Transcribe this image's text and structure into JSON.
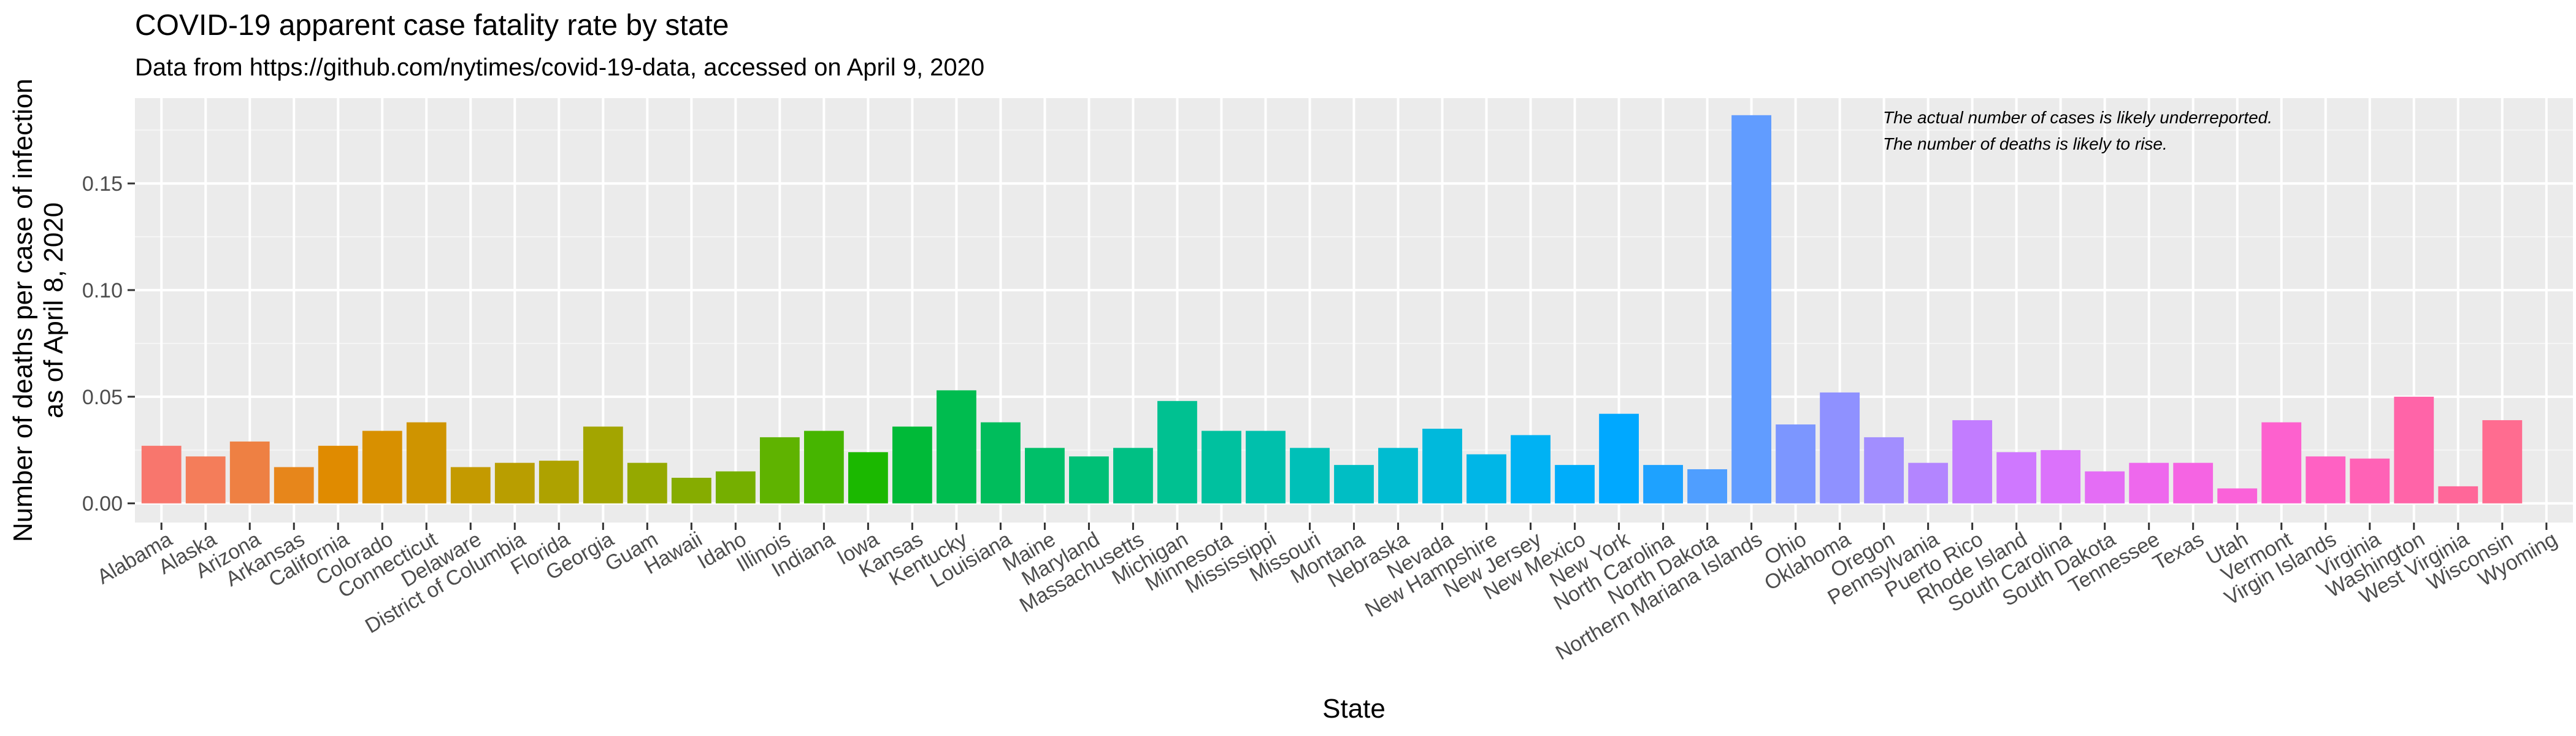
{
  "chart_data": {
    "type": "bar",
    "title": "COVID-19 apparent case fatality rate by state",
    "subtitle": "Data from https://github.com/nytimes/covid-19-data, accessed on April 9, 2020",
    "xlabel": "State",
    "ylabel_line1": "Number of deaths per case of infection",
    "ylabel_line2": "as of April 8, 2020",
    "annotation_line1": "The actual number of cases is likely underreported.",
    "annotation_line2": "The number of deaths is likely to rise.",
    "ylim": [
      -0.009,
      0.19
    ],
    "yticks": [
      0.0,
      0.05,
      0.1,
      0.15
    ],
    "ytick_labels": [
      "0.00",
      "0.05",
      "0.10",
      "0.15"
    ],
    "grid": true,
    "legend": "none",
    "panel_color": "#EBEBEB",
    "categories": [
      "Alabama",
      "Alaska",
      "Arizona",
      "Arkansas",
      "California",
      "Colorado",
      "Connecticut",
      "Delaware",
      "District of Columbia",
      "Florida",
      "Georgia",
      "Guam",
      "Hawaii",
      "Idaho",
      "Illinois",
      "Indiana",
      "Iowa",
      "Kansas",
      "Kentucky",
      "Louisiana",
      "Maine",
      "Maryland",
      "Massachusetts",
      "Michigan",
      "Minnesota",
      "Mississippi",
      "Missouri",
      "Montana",
      "Nebraska",
      "Nevada",
      "New Hampshire",
      "New Jersey",
      "New Mexico",
      "New York",
      "North Carolina",
      "North Dakota",
      "Northern Mariana Islands",
      "Ohio",
      "Oklahoma",
      "Oregon",
      "Pennsylvania",
      "Puerto Rico",
      "Rhode Island",
      "South Carolina",
      "South Dakota",
      "Tennessee",
      "Texas",
      "Utah",
      "Vermont",
      "Virgin Islands",
      "Virginia",
      "Washington",
      "West Virginia",
      "Wisconsin",
      "Wyoming"
    ],
    "values": [
      0.027,
      0.022,
      0.029,
      0.017,
      0.027,
      0.034,
      0.038,
      0.017,
      0.019,
      0.02,
      0.036,
      0.019,
      0.012,
      0.015,
      0.031,
      0.034,
      0.024,
      0.036,
      0.053,
      0.038,
      0.026,
      0.022,
      0.026,
      0.048,
      0.034,
      0.034,
      0.026,
      0.018,
      0.026,
      0.035,
      0.023,
      0.032,
      0.018,
      0.042,
      0.018,
      0.016,
      0.182,
      0.037,
      0.052,
      0.031,
      0.019,
      0.039,
      0.024,
      0.025,
      0.015,
      0.019,
      0.019,
      0.007,
      0.038,
      0.022,
      0.021,
      0.05,
      0.008,
      0.039,
      0.0
    ],
    "colors": [
      "#F8766D",
      "#F47D5A",
      "#EE8043",
      "#E7861B",
      "#E08B00",
      "#D89000",
      "#CF9400",
      "#C49A00",
      "#B99E00",
      "#AEA200",
      "#A3A500",
      "#95A900",
      "#86AC00",
      "#75AF00",
      "#5FB300",
      "#46B500",
      "#1BB800",
      "#00BA38",
      "#00BC4F",
      "#00BD5C",
      "#00BF69",
      "#00C076",
      "#00C084",
      "#00C191",
      "#00C19F",
      "#00C0AC",
      "#00C0B8",
      "#00BEC4",
      "#00BCD1",
      "#00B9DC",
      "#00B6E7",
      "#00B2F3",
      "#00ADFA",
      "#00A8FF",
      "#1EA2FF",
      "#4F9EFF",
      "#619CFF",
      "#7C96FF",
      "#8F91FF",
      "#A28EFF",
      "#B385FF",
      "#C27CFF",
      "#CF78FF",
      "#DB72FB",
      "#E46DF5",
      "#EE68ED",
      "#F564E3",
      "#FA62D9",
      "#FD61CE",
      "#FF61C3",
      "#FF62B6",
      "#FF64A8",
      "#FF6799",
      "#FF6C90",
      "#F8766D"
    ]
  }
}
